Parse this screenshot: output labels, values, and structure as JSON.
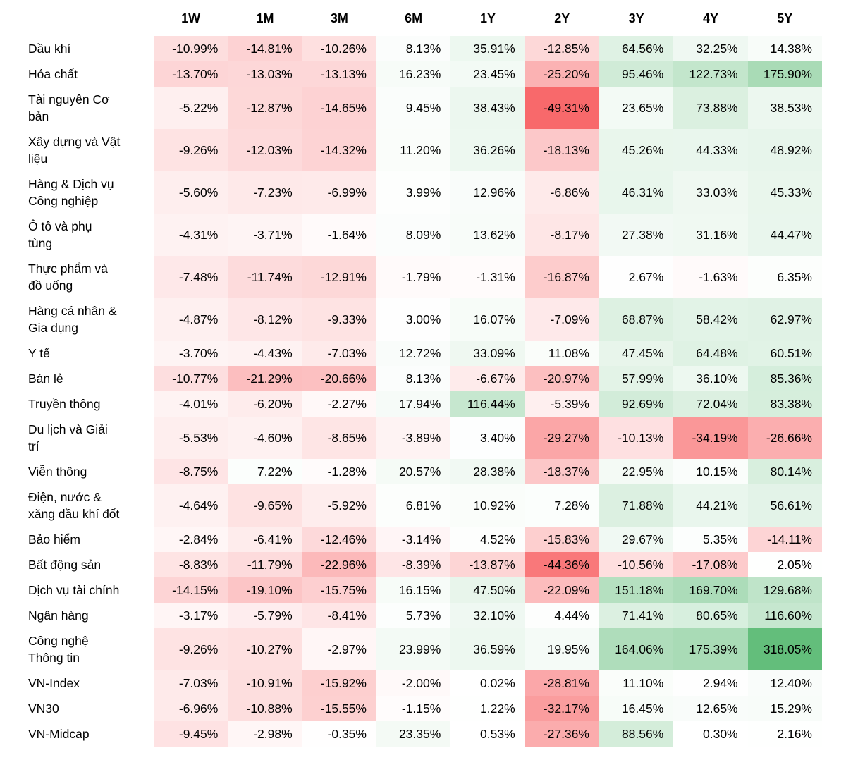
{
  "page": {
    "background": "#ffffff"
  },
  "chart_data": {
    "type": "heatmap",
    "description": "Sector performance heatmap of Vietnamese stock market indices over multiple horizons",
    "value_suffix": "%",
    "value_decimals": 2,
    "legend_position": "none",
    "grid": false,
    "color_scale": {
      "negative_color": "#F8696B",
      "zero_color": "#FFFFFF",
      "positive_color": "#63BE7B",
      "min": -49.31,
      "mid": 0,
      "max": 318.05
    },
    "columns": [
      "1W",
      "1M",
      "3M",
      "6M",
      "1Y",
      "2Y",
      "3Y",
      "4Y",
      "5Y"
    ],
    "rows": [
      {
        "label": "Dầu khí",
        "values": [
          -10.99,
          -14.81,
          -10.26,
          8.13,
          35.91,
          -12.85,
          64.56,
          32.25,
          14.38
        ]
      },
      {
        "label": "Hóa chất",
        "values": [
          -13.7,
          -13.03,
          -13.13,
          16.23,
          23.45,
          -25.2,
          95.46,
          122.73,
          175.9
        ]
      },
      {
        "label": "Tài nguyên Cơ\nbản",
        "values": [
          -5.22,
          -12.87,
          -14.65,
          9.45,
          38.43,
          -49.31,
          23.65,
          73.88,
          38.53
        ]
      },
      {
        "label": "Xây dựng và Vật\nliệu",
        "values": [
          -9.26,
          -12.03,
          -14.32,
          11.2,
          36.26,
          -18.13,
          45.26,
          44.33,
          48.92
        ]
      },
      {
        "label": "Hàng & Dịch vụ\nCông nghiệp",
        "values": [
          -5.6,
          -7.23,
          -6.99,
          3.99,
          12.96,
          -6.86,
          46.31,
          33.03,
          45.33
        ]
      },
      {
        "label": "Ô tô và phụ\ntùng",
        "values": [
          -4.31,
          -3.71,
          -1.64,
          8.09,
          13.62,
          -8.17,
          27.38,
          31.16,
          44.47
        ]
      },
      {
        "label": "Thực phẩm và\nđồ uống",
        "values": [
          -7.48,
          -11.74,
          -12.91,
          -1.79,
          -1.31,
          -16.87,
          2.67,
          -1.63,
          6.35
        ]
      },
      {
        "label": "Hàng cá nhân &\nGia dụng",
        "values": [
          -4.87,
          -8.12,
          -9.33,
          3.0,
          16.07,
          -7.09,
          68.87,
          58.42,
          62.97
        ]
      },
      {
        "label": "Y tế",
        "values": [
          -3.7,
          -4.43,
          -7.03,
          12.72,
          33.09,
          11.08,
          47.45,
          64.48,
          60.51
        ]
      },
      {
        "label": "Bán lẻ",
        "values": [
          -10.77,
          -21.29,
          -20.66,
          8.13,
          -6.67,
          -20.97,
          57.99,
          36.1,
          85.36
        ]
      },
      {
        "label": "Truyền thông",
        "values": [
          -4.01,
          -6.2,
          -2.27,
          17.94,
          116.44,
          -5.39,
          92.69,
          72.04,
          83.38
        ]
      },
      {
        "label": "Du lịch và Giải\ntrí",
        "values": [
          -5.53,
          -4.6,
          -8.65,
          -3.89,
          3.4,
          -29.27,
          -10.13,
          -34.19,
          -26.66
        ]
      },
      {
        "label": "Viễn thông",
        "values": [
          -8.75,
          7.22,
          -1.28,
          20.57,
          28.38,
          -18.37,
          22.95,
          10.15,
          80.14
        ]
      },
      {
        "label": "Điện, nước &\nxăng dầu khí đốt",
        "values": [
          -4.64,
          -9.65,
          -5.92,
          6.81,
          10.92,
          7.28,
          71.88,
          44.21,
          56.61
        ]
      },
      {
        "label": "Bảo hiểm",
        "values": [
          -2.84,
          -6.41,
          -12.46,
          -3.14,
          4.52,
          -15.83,
          29.67,
          5.35,
          -14.11
        ]
      },
      {
        "label": "Bất động sản",
        "values": [
          -8.83,
          -11.79,
          -22.96,
          -8.39,
          -13.87,
          -44.36,
          -10.56,
          -17.08,
          2.05
        ]
      },
      {
        "label": "Dịch vụ tài chính",
        "values": [
          -14.15,
          -19.1,
          -15.75,
          16.15,
          47.5,
          -22.09,
          151.18,
          169.7,
          129.68
        ]
      },
      {
        "label": "Ngân hàng",
        "values": [
          -3.17,
          -5.79,
          -8.41,
          5.73,
          32.1,
          4.44,
          71.41,
          80.65,
          116.6
        ]
      },
      {
        "label": "Công nghệ\nThông tin",
        "values": [
          -9.26,
          -10.27,
          -2.97,
          23.99,
          36.59,
          19.95,
          164.06,
          175.39,
          318.05
        ]
      },
      {
        "label": "VN-Index",
        "values": [
          -7.03,
          -10.91,
          -15.92,
          -2.0,
          0.02,
          -28.81,
          11.1,
          2.94,
          12.4
        ]
      },
      {
        "label": "VN30",
        "values": [
          -6.96,
          -10.88,
          -15.55,
          -1.15,
          1.22,
          -32.17,
          16.45,
          12.65,
          15.29
        ]
      },
      {
        "label": "VN-Midcap",
        "values": [
          -9.45,
          -2.98,
          -0.35,
          23.35,
          0.53,
          -27.36,
          88.56,
          0.3,
          2.16
        ]
      }
    ]
  }
}
